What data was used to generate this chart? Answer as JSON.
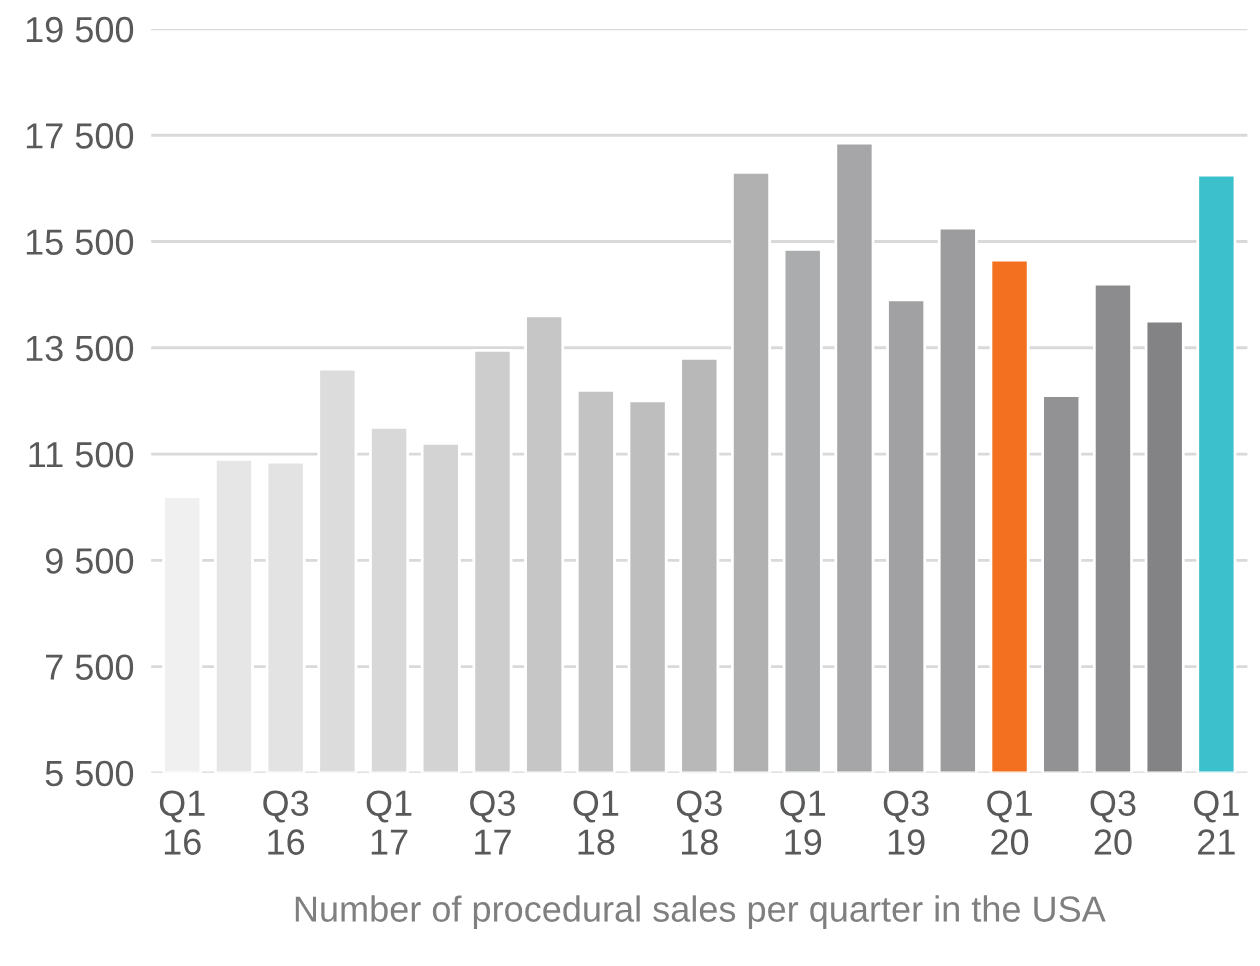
{
  "chart_data": {
    "type": "bar",
    "xlabel": "Number of procedural sales per quarter in the USA",
    "categories": [
      "Q1\n16",
      null,
      "Q3\n16",
      null,
      "Q1\n17",
      null,
      "Q3\n17",
      null,
      "Q1\n18",
      null,
      "Q3\n18",
      null,
      "Q1\n19",
      null,
      "Q3\n19",
      null,
      "Q1\n20",
      null,
      "Q3\n20",
      null,
      "Q1\n21"
    ],
    "values": [
      10700,
      11400,
      11350,
      13100,
      12000,
      11700,
      13450,
      14100,
      12700,
      12500,
      13300,
      16800,
      15350,
      17350,
      14400,
      15750,
      15150,
      12600,
      14700,
      14000,
      16750
    ],
    "colors": [
      "#f0f0f0",
      "#e6e6e7",
      "#e3e3e4",
      "#dcdcdd",
      "#d8d8d9",
      "#d3d3d4",
      "#cdcdce",
      "#c6c6c7",
      "#c3c3c4",
      "#bebebf",
      "#b8b8b9",
      "#b1b1b2",
      "#abacad",
      "#a6a6a8",
      "#a1a1a3",
      "#9c9c9e",
      "#f37021",
      "#929294",
      "#8c8c8e",
      "#838385",
      "#3cc0cc"
    ],
    "ylim": [
      5500,
      19500
    ],
    "yticks": [
      {
        "value": 5500,
        "label": "5 500"
      },
      {
        "value": 7500,
        "label": "7 500"
      },
      {
        "value": 9500,
        "label": "9 500"
      },
      {
        "value": 11500,
        "label": "11 500"
      },
      {
        "value": 13500,
        "label": "13 500"
      },
      {
        "value": 15500,
        "label": "15 500"
      },
      {
        "value": 17500,
        "label": "17 500"
      },
      {
        "value": 19500,
        "label": "19 500"
      }
    ],
    "grid": "y"
  }
}
